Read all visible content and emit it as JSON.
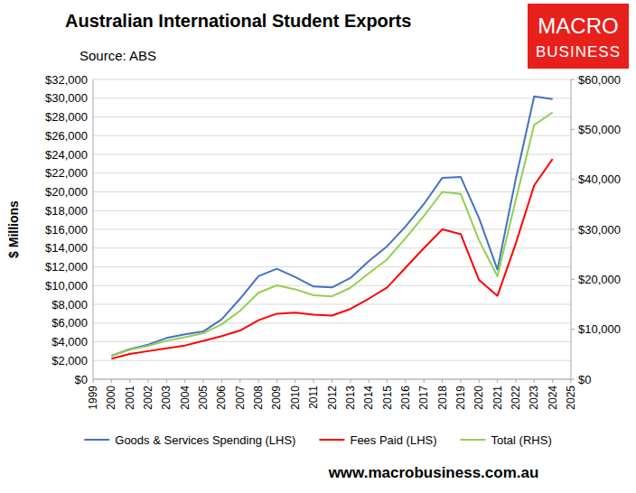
{
  "chart_data": {
    "type": "line",
    "title": "Australian International Student Exports",
    "subtitle": "Source: ABS",
    "y_label": "$ Millions",
    "annotations": [
      "MACRO",
      "BUSINESS",
      "www.macrobusiness.com.au"
    ],
    "x": [
      2000,
      2001,
      2002,
      2003,
      2004,
      2005,
      2006,
      2007,
      2008,
      2009,
      2010,
      2011,
      2012,
      2013,
      2014,
      2015,
      2016,
      2017,
      2018,
      2019,
      2020,
      2021,
      2022,
      2023,
      2024
    ],
    "xlim": [
      1999,
      2025
    ],
    "xticks": [
      1999,
      2000,
      2001,
      2002,
      2003,
      2004,
      2005,
      2006,
      2007,
      2008,
      2009,
      2010,
      2011,
      2012,
      2013,
      2014,
      2015,
      2016,
      2017,
      2018,
      2019,
      2020,
      2021,
      2022,
      2023,
      2024,
      2025
    ],
    "ylim": [
      0,
      32000
    ],
    "yticks": [
      {
        "value": 0,
        "label": "$0"
      },
      {
        "value": 2000,
        "label": "$2,000"
      },
      {
        "value": 4000,
        "label": "$4,000"
      },
      {
        "value": 6000,
        "label": "$6,000"
      },
      {
        "value": 8000,
        "label": "$8,000"
      },
      {
        "value": 10000,
        "label": "$10,000"
      },
      {
        "value": 12000,
        "label": "$12,000"
      },
      {
        "value": 14000,
        "label": "$14,000"
      },
      {
        "value": 16000,
        "label": "$16,000"
      },
      {
        "value": 18000,
        "label": "$18,000"
      },
      {
        "value": 20000,
        "label": "$20,000"
      },
      {
        "value": 22000,
        "label": "$22,000"
      },
      {
        "value": 24000,
        "label": "$24,000"
      },
      {
        "value": 26000,
        "label": "$26,000"
      },
      {
        "value": 28000,
        "label": "$28,000"
      },
      {
        "value": 30000,
        "label": "$30,000"
      },
      {
        "value": 32000,
        "label": "$32,000"
      }
    ],
    "y2lim": [
      0,
      60000
    ],
    "y2ticks": [
      {
        "value": 0,
        "label": "$0"
      },
      {
        "value": 10000,
        "label": "$10,000"
      },
      {
        "value": 20000,
        "label": "$20,000"
      },
      {
        "value": 30000,
        "label": "$30,000"
      },
      {
        "value": 40000,
        "label": "$40,000"
      },
      {
        "value": 50000,
        "label": "$50,000"
      },
      {
        "value": 60000,
        "label": "$60,000"
      }
    ],
    "grid": true,
    "legend": "bottom",
    "series": [
      {
        "name": "Goods & Services Spending (LHS)",
        "color": "#4472c4",
        "axis": "y",
        "values": [
          2500,
          3200,
          3700,
          4400,
          4800,
          5100,
          6400,
          8600,
          11000,
          11800,
          10900,
          9900,
          9800,
          10800,
          12600,
          14200,
          16300,
          18700,
          21500,
          21600,
          17200,
          11700,
          21400,
          30200,
          29900
        ]
      },
      {
        "name": "Fees Paid (LHS)",
        "color": "#ff0000",
        "axis": "y",
        "values": [
          2200,
          2700,
          3000,
          3300,
          3600,
          4100,
          4600,
          5200,
          6300,
          7000,
          7100,
          6900,
          6800,
          7500,
          8600,
          9800,
          11900,
          14000,
          16000,
          15500,
          10600,
          8900,
          14500,
          20700,
          23500
        ]
      },
      {
        "name": "Total (RHS)",
        "color": "#92d050",
        "axis": "y2",
        "values": [
          4700,
          5900,
          6700,
          7700,
          8400,
          9200,
          11000,
          13700,
          17300,
          18800,
          18000,
          16800,
          16600,
          18300,
          21200,
          24000,
          28200,
          32700,
          37500,
          37100,
          27800,
          20600,
          35900,
          50900,
          53400
        ]
      }
    ]
  }
}
